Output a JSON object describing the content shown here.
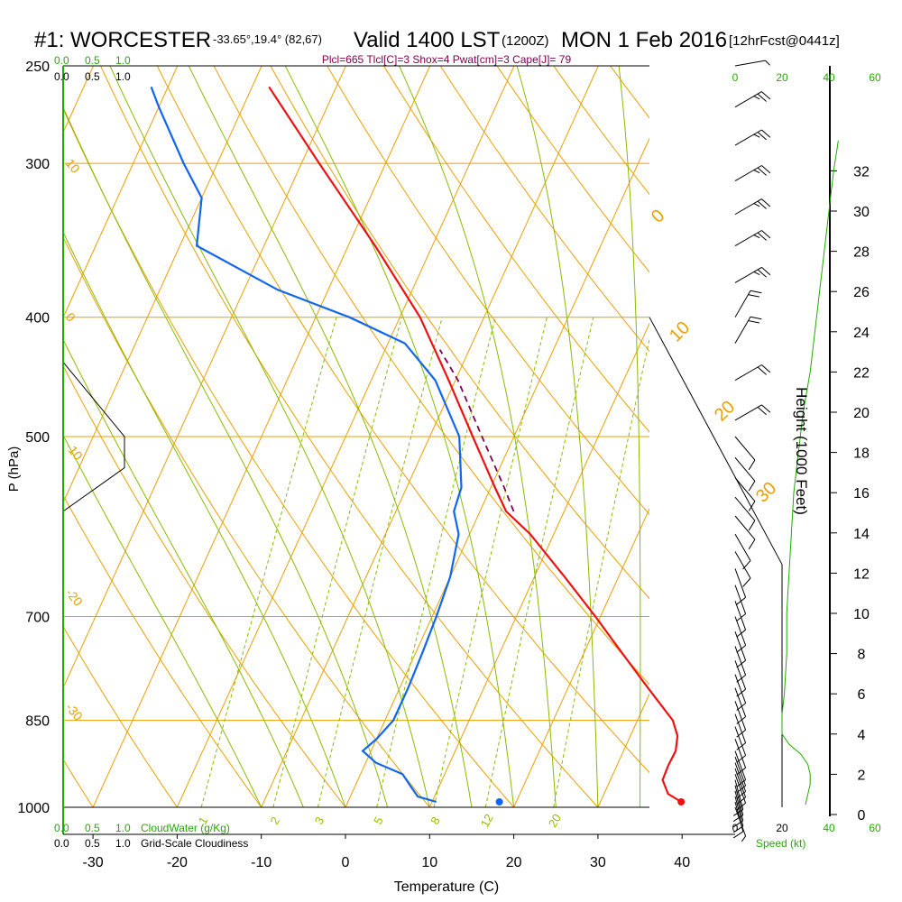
{
  "header": {
    "station": "#1: WORCESTER",
    "coords": "-33.65°,19.4° (82,67)",
    "valid_main": "Valid 1400 LST",
    "valid_z": "(1200Z)",
    "date": "MON 1 Feb 2016",
    "fcst": "[12hrFcst@0441z]"
  },
  "indices": "Plcl=665 Tlcl[C]=3 Shox=4 Pwat[cm]=3 Cape[J]= 79",
  "colors": {
    "temperature": "#ee1111",
    "dewpoint": "#1166ee",
    "parcel": "#800050",
    "isotherm": "#e8a000",
    "dry_adiabat": "#e8a000",
    "moist_adiabat": "#88bb00",
    "mixing_ratio": "#88bb00",
    "green_text": "#22aa00",
    "wind_speed_profile": "#22aa00"
  },
  "axes": {
    "xlabel": "Temperature (C)",
    "ylabel": "P (hPa)",
    "right_label": "Height (1000 Feet)",
    "x_ticks": [
      "-30",
      "-20",
      "-10",
      "0",
      "10",
      "20",
      "30",
      "40"
    ],
    "p_ticks": [
      "250",
      "300",
      "400",
      "500",
      "700",
      "850",
      "1000"
    ],
    "height_ticks": [
      "0",
      "2",
      "4",
      "6",
      "8",
      "10",
      "12",
      "14",
      "16",
      "18",
      "20",
      "22",
      "24",
      "26",
      "28",
      "30",
      "32"
    ]
  },
  "cloud_scale": {
    "ticks_green": [
      "0.0",
      "0.5",
      "1.0"
    ],
    "ticks_black": [
      "0.0",
      "0.5",
      "1.0"
    ],
    "cloudwater_label": "CloudWater (g/Kg)",
    "cloudiness_label": "Grid-Scale Cloudiness"
  },
  "speed_scale": {
    "ticks_black": [
      "0",
      "20"
    ],
    "ticks_green": [
      "20",
      "40",
      "60"
    ],
    "label": "Speed (kt)"
  },
  "isotherm_labels": {
    "left": [
      "10",
      "0",
      "-10",
      "-20",
      "-30"
    ],
    "right": [
      "0",
      "10",
      "20",
      "30"
    ]
  },
  "mixing_ratio_labels": [
    "1",
    "2",
    "3",
    "5",
    "8",
    "12",
    "20"
  ],
  "chart_data": {
    "type": "line",
    "series": [
      {
        "p": [
          990,
          975,
          950,
          925,
          900,
          875,
          850,
          800,
          750,
          700,
          650,
          600,
          575,
          550,
          500,
          450,
          400,
          350,
          300,
          260
        ],
        "values": [
          39.6,
          37.6,
          36.2,
          36.1,
          36.2,
          35.6,
          34.2,
          29.5,
          24.6,
          19.4,
          13.6,
          7.2,
          3.1,
          0.5,
          -4.9,
          -10.8,
          -17.6,
          -26.8,
          -37.9,
          -48.0
        ]
      },
      {
        "p": [
          990,
          980,
          960,
          940,
          920,
          900,
          880,
          850,
          800,
          750,
          700,
          650,
          600,
          575,
          550,
          500,
          450,
          420,
          400,
          380,
          350,
          320,
          300,
          270,
          260
        ],
        "values": [
          10.5,
          8.0,
          6.5,
          5.0,
          1.2,
          -1.0,
          0.0,
          1.0,
          1.0,
          0.8,
          0.5,
          0.0,
          -1.3,
          -3.1,
          -3.5,
          -6.5,
          -12.4,
          -18.0,
          -26.0,
          -36.0,
          -48.0,
          -50.0,
          -54.0,
          -60.0,
          -62.0
        ]
      },
      {
        "p": [
          575,
          550,
          500,
          450,
          425
        ],
        "values": [
          4.0,
          1.6,
          -3.8,
          -9.7,
          -13.5
        ]
      }
    ],
    "surface_points": [
      {
        "p": 990,
        "t": 39.6
      },
      {
        "p": 990,
        "t": 18.0
      }
    ],
    "xlim": [
      -33.5,
      36
    ],
    "ylim": [
      1000,
      250
    ],
    "skew_per_unit_pixel": 0.4545,
    "isotherms": [
      -90,
      -80,
      -70,
      -60,
      -50,
      -40,
      -30,
      -20,
      -10,
      0,
      10,
      20,
      30,
      40,
      50
    ],
    "dry_adiabats_theta_c": [
      -30,
      -20,
      -10,
      0,
      10,
      20,
      30,
      40,
      50,
      60,
      70,
      80,
      90,
      100,
      110,
      120,
      130
    ],
    "moist_adiabats_c": [
      -10,
      -5,
      0,
      5,
      10,
      15,
      20,
      25,
      30,
      35,
      40
    ],
    "mixing_ratios_gkg": [
      1,
      2,
      3,
      5,
      8,
      12,
      20
    ],
    "winds": [
      {
        "p": 1000,
        "dir": 160,
        "spd": 5
      },
      {
        "p": 990,
        "dir": 165,
        "spd": 10
      },
      {
        "p": 980,
        "dir": 165,
        "spd": 10
      },
      {
        "p": 970,
        "dir": 165,
        "spd": 10
      },
      {
        "p": 960,
        "dir": 165,
        "spd": 10
      },
      {
        "p": 950,
        "dir": 165,
        "spd": 10
      },
      {
        "p": 940,
        "dir": 160,
        "spd": 10
      },
      {
        "p": 930,
        "dir": 160,
        "spd": 10
      },
      {
        "p": 920,
        "dir": 160,
        "spd": 10
      },
      {
        "p": 910,
        "dir": 160,
        "spd": 10
      },
      {
        "p": 900,
        "dir": 160,
        "spd": 10
      },
      {
        "p": 880,
        "dir": 160,
        "spd": 10
      },
      {
        "p": 860,
        "dir": 160,
        "spd": 10
      },
      {
        "p": 840,
        "dir": 160,
        "spd": 10
      },
      {
        "p": 820,
        "dir": 160,
        "spd": 10
      },
      {
        "p": 800,
        "dir": 160,
        "spd": 10
      },
      {
        "p": 780,
        "dir": 160,
        "spd": 10
      },
      {
        "p": 760,
        "dir": 160,
        "spd": 10
      },
      {
        "p": 740,
        "dir": 160,
        "spd": 10
      },
      {
        "p": 720,
        "dir": 160,
        "spd": 10
      },
      {
        "p": 700,
        "dir": 160,
        "spd": 10
      },
      {
        "p": 680,
        "dir": 160,
        "spd": 10
      },
      {
        "p": 660,
        "dir": 160,
        "spd": 10
      },
      {
        "p": 640,
        "dir": 160,
        "spd": 10
      },
      {
        "p": 620,
        "dir": 150,
        "spd": 10
      },
      {
        "p": 600,
        "dir": 150,
        "spd": 10
      },
      {
        "p": 580,
        "dir": 140,
        "spd": 10
      },
      {
        "p": 560,
        "dir": 140,
        "spd": 10
      },
      {
        "p": 540,
        "dir": 140,
        "spd": 10
      },
      {
        "p": 520,
        "dir": 140,
        "spd": 10
      },
      {
        "p": 500,
        "dir": 140,
        "spd": 10
      },
      {
        "p": 485,
        "dir": 60,
        "spd": 20
      },
      {
        "p": 450,
        "dir": 60,
        "spd": 20
      },
      {
        "p": 420,
        "dir": 30,
        "spd": 20
      },
      {
        "p": 400,
        "dir": 30,
        "spd": 20
      },
      {
        "p": 375,
        "dir": 60,
        "spd": 25
      },
      {
        "p": 350,
        "dir": 60,
        "spd": 25
      },
      {
        "p": 330,
        "dir": 60,
        "spd": 25
      },
      {
        "p": 310,
        "dir": 60,
        "spd": 25
      },
      {
        "p": 290,
        "dir": 60,
        "spd": 25
      },
      {
        "p": 270,
        "dir": 60,
        "spd": 25
      },
      {
        "p": 250,
        "dir": 80,
        "spd": 5
      }
    ],
    "cloud_outline": [
      {
        "p": 420,
        "v": 0.0
      },
      {
        "p": 500,
        "v": 0.32
      },
      {
        "p": 540,
        "v": 0.32
      },
      {
        "p": 580,
        "v": 0.0
      }
    ],
    "wind_speed_profile": {
      "h_kft": [
        0.5,
        1.0,
        1.5,
        2.0,
        2.5,
        3.0,
        3.5,
        4.0,
        5.0,
        6.0,
        8.0,
        10.0,
        12.0,
        14.0,
        16.0,
        18.0,
        20.0,
        22.0,
        24.0,
        26.0,
        28.0,
        30.0,
        32.0,
        33.5
      ],
      "kt": [
        30,
        31,
        32,
        32,
        31,
        28,
        23,
        20,
        20,
        21,
        22,
        22,
        23,
        24,
        25,
        27,
        29,
        32,
        34,
        36,
        38,
        40,
        42,
        44
      ]
    },
    "max_wind_envelope": [
      {
        "p": 400,
        "kt": 0
      },
      {
        "p": 635,
        "kt": 25
      },
      {
        "p": 1000,
        "kt": 25
      }
    ]
  }
}
